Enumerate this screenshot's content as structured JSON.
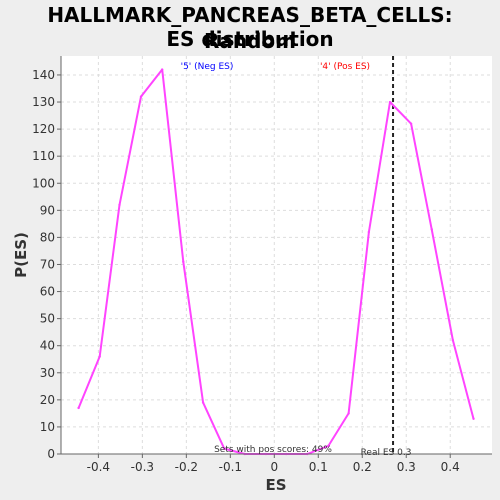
{
  "title_line1": "HALLMARK_PANCREAS_BETA_CELLS: Random",
  "title_line2": "ES distribution",
  "chart_data": {
    "type": "line",
    "xlabel": "ES",
    "ylabel": "P(ES)",
    "xlim": [
      -0.485,
      0.495
    ],
    "ylim": [
      0,
      147
    ],
    "xticks": [
      -0.4,
      -0.3,
      -0.2,
      -0.1,
      0.0,
      0.1,
      0.2,
      0.3,
      0.4
    ],
    "xtick_labels": [
      "-0.4",
      "-0.3",
      "-0.2",
      "-0.1",
      "0",
      "0.1",
      "0.2",
      "0.3",
      "0.4"
    ],
    "yticks": [
      0,
      10,
      20,
      30,
      40,
      50,
      60,
      70,
      80,
      90,
      100,
      110,
      120,
      130,
      140
    ],
    "grid": true,
    "series": [
      {
        "color": "#ff44ff",
        "x": [
          -0.445,
          -0.397,
          -0.352,
          -0.303,
          -0.255,
          -0.207,
          -0.162,
          -0.114,
          -0.067,
          -0.019,
          0.027,
          0.075,
          0.123,
          0.169,
          0.215,
          0.263,
          0.311,
          0.358,
          0.406,
          0.453
        ],
        "y": [
          17,
          36,
          92,
          132,
          142,
          71,
          19,
          2,
          0,
          0,
          0,
          0,
          3,
          15,
          82,
          130,
          122,
          83,
          42,
          13
        ]
      }
    ],
    "annotations": {
      "neg_label": "'5' (Neg ES)",
      "neg_color": "#0000ff",
      "pos_label": "'4' (Pos ES)",
      "pos_color": "#ff0000",
      "real_es_x": 0.27,
      "real_es_label": "Real ES 0.3",
      "pos_scores_label": "Sets with pos scores: 49%"
    }
  }
}
